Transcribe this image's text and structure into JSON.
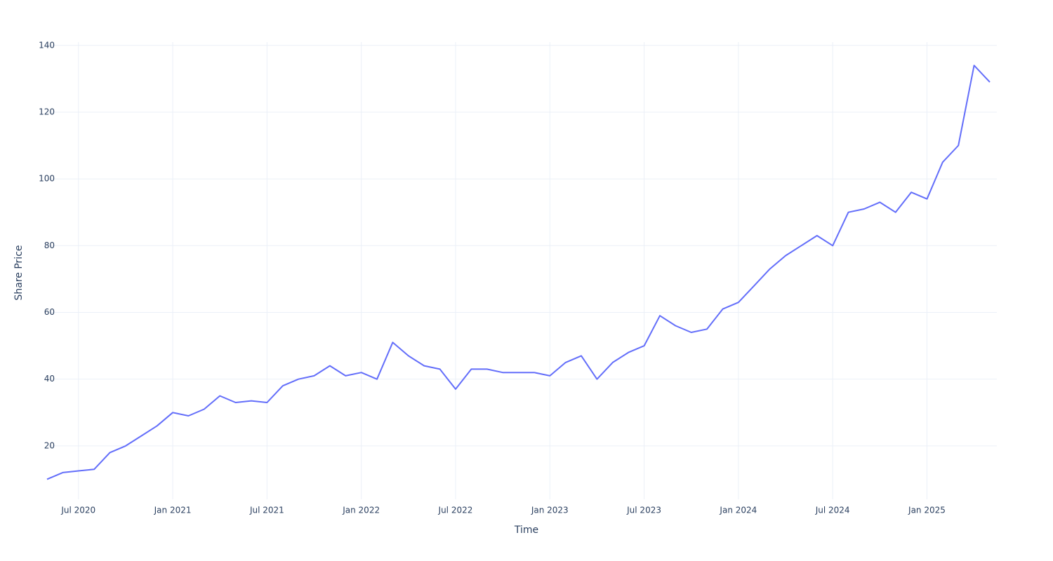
{
  "chart_data": {
    "type": "line",
    "x_title": "Time",
    "y_title": "Share Price",
    "x": [
      "2020-05",
      "2020-06",
      "2020-07",
      "2020-08",
      "2020-09",
      "2020-10",
      "2020-11",
      "2020-12",
      "2021-01",
      "2021-02",
      "2021-03",
      "2021-04",
      "2021-05",
      "2021-06",
      "2021-07",
      "2021-08",
      "2021-09",
      "2021-10",
      "2021-11",
      "2021-12",
      "2022-01",
      "2022-02",
      "2022-03",
      "2022-04",
      "2022-05",
      "2022-06",
      "2022-07",
      "2022-08",
      "2022-09",
      "2022-10",
      "2022-11",
      "2022-12",
      "2023-01",
      "2023-02",
      "2023-03",
      "2023-04",
      "2023-05",
      "2023-06",
      "2023-07",
      "2023-08",
      "2023-09",
      "2023-10",
      "2023-11",
      "2023-12",
      "2024-01",
      "2024-02",
      "2024-03",
      "2024-04",
      "2024-05",
      "2024-06",
      "2024-07",
      "2024-08",
      "2024-09",
      "2024-10",
      "2024-11",
      "2024-12",
      "2025-01",
      "2025-02",
      "2025-03",
      "2025-04",
      "2025-05"
    ],
    "values": [
      10,
      12,
      12.5,
      13,
      18,
      20,
      23,
      26,
      30,
      29,
      31,
      35,
      33,
      33.5,
      33,
      38,
      40,
      41,
      44,
      41,
      42,
      40,
      51,
      47,
      44,
      43,
      37,
      43,
      43,
      42,
      42,
      42,
      41,
      45,
      47,
      40,
      45,
      48,
      50,
      59,
      56,
      54,
      55,
      61,
      63,
      68,
      73,
      77,
      80,
      83,
      80,
      90,
      91,
      93,
      90,
      96,
      94,
      105,
      110,
      134,
      129
    ],
    "color": "#636efa",
    "xlim": [
      "2020-05",
      "2025-05"
    ],
    "xticks": [
      {
        "value": "2020-07",
        "label": "Jul 2020"
      },
      {
        "value": "2021-01",
        "label": "Jan 2021"
      },
      {
        "value": "2021-07",
        "label": "Jul 2021"
      },
      {
        "value": "2022-01",
        "label": "Jan 2022"
      },
      {
        "value": "2022-07",
        "label": "Jul 2022"
      },
      {
        "value": "2023-01",
        "label": "Jan 2023"
      },
      {
        "value": "2023-07",
        "label": "Jul 2023"
      },
      {
        "value": "2024-01",
        "label": "Jan 2024"
      },
      {
        "value": "2024-07",
        "label": "Jul 2024"
      },
      {
        "value": "2025-01",
        "label": "Jan 2025"
      }
    ],
    "ylim": [
      4,
      141
    ],
    "yticks": [
      20,
      40,
      60,
      80,
      100,
      120,
      140
    ],
    "grid": true
  }
}
